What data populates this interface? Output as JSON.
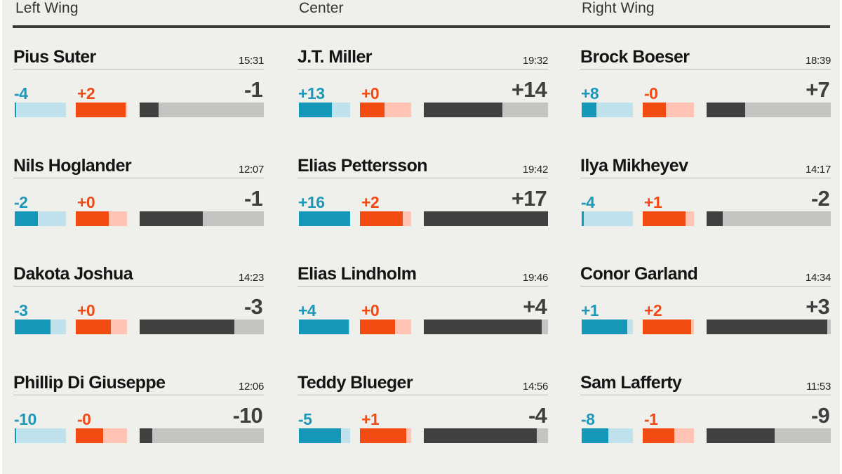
{
  "columns": [
    {
      "title": "Left Wing",
      "players": [
        {
          "name": "Pius Suter",
          "toi": "15:31",
          "blue": "-4",
          "red": "+2",
          "net": "-1",
          "blue_fill": 0.03,
          "red_fill": 0.97,
          "net_fill": 0.15
        },
        {
          "name": "Nils Hoglander",
          "toi": "12:07",
          "blue": "-2",
          "red": "+0",
          "net": "-1",
          "blue_fill": 0.45,
          "red_fill": 0.64,
          "net_fill": 0.51
        },
        {
          "name": "Dakota Joshua",
          "toi": "14:23",
          "blue": "-3",
          "red": "+0",
          "net": "-3",
          "blue_fill": 0.7,
          "red_fill": 0.68,
          "net_fill": 0.76
        },
        {
          "name": "Phillip Di Giuseppe",
          "toi": "12:06",
          "blue": "-10",
          "red": "-0",
          "net": "-10",
          "blue_fill": 0.02,
          "red_fill": 0.54,
          "net_fill": 0.1
        }
      ]
    },
    {
      "title": "Center",
      "players": [
        {
          "name": "J.T. Miller",
          "toi": "19:32",
          "blue": "+13",
          "red": "+0",
          "net": "+14",
          "blue_fill": 0.64,
          "red_fill": 0.48,
          "net_fill": 0.63
        },
        {
          "name": "Elias Pettersson",
          "toi": "19:42",
          "blue": "+16",
          "red": "+2",
          "net": "+17",
          "blue_fill": 1.0,
          "red_fill": 0.84,
          "net_fill": 1.0
        },
        {
          "name": "Elias Lindholm",
          "toi": "19:46",
          "blue": "+4",
          "red": "+0",
          "net": "+4",
          "blue_fill": 0.97,
          "red_fill": 0.68,
          "net_fill": 0.95
        },
        {
          "name": "Teddy Blueger",
          "toi": "14:56",
          "blue": "-5",
          "red": "+1",
          "net": "-4",
          "blue_fill": 0.82,
          "red_fill": 0.9,
          "net_fill": 0.91
        }
      ]
    },
    {
      "title": "Right Wing",
      "players": [
        {
          "name": "Brock Boeser",
          "toi": "18:39",
          "blue": "+8",
          "red": "-0",
          "net": "+7",
          "blue_fill": 0.29,
          "red_fill": 0.45,
          "net_fill": 0.31
        },
        {
          "name": "Ilya Mikheyev",
          "toi": "14:17",
          "blue": "-4",
          "red": "+1",
          "net": "-2",
          "blue_fill": 0.04,
          "red_fill": 0.84,
          "net_fill": 0.13
        },
        {
          "name": "Conor Garland",
          "toi": "14:34",
          "blue": "+1",
          "red": "+2",
          "net": "+3",
          "blue_fill": 0.89,
          "red_fill": 0.95,
          "net_fill": 0.97
        },
        {
          "name": "Sam Lafferty",
          "toi": "11:53",
          "blue": "-8",
          "red": "-1",
          "net": "-9",
          "blue_fill": 0.52,
          "red_fill": 0.62,
          "net_fill": 0.55
        }
      ]
    }
  ],
  "colors": {
    "blue": "#1597b8",
    "blue_light": "#bfe2ec",
    "red": "#f14b12",
    "red_light": "#ffc4b3",
    "net": "#404040",
    "net_light": "#c3c3c1"
  },
  "chart_data": {
    "type": "bar",
    "title": "",
    "categories": [
      "Left Wing",
      "Center",
      "Right Wing"
    ],
    "series": [
      {
        "position": "Left Wing",
        "player": "Pius Suter",
        "toi": "15:31",
        "blue": -4,
        "red": 2,
        "net": -1
      },
      {
        "position": "Left Wing",
        "player": "Nils Hoglander",
        "toi": "12:07",
        "blue": -2,
        "red": 0,
        "net": -1
      },
      {
        "position": "Left Wing",
        "player": "Dakota Joshua",
        "toi": "14:23",
        "blue": -3,
        "red": 0,
        "net": -3
      },
      {
        "position": "Left Wing",
        "player": "Phillip Di Giuseppe",
        "toi": "12:06",
        "blue": -10,
        "red": 0,
        "net": -10
      },
      {
        "position": "Center",
        "player": "J.T. Miller",
        "toi": "19:32",
        "blue": 13,
        "red": 0,
        "net": 14
      },
      {
        "position": "Center",
        "player": "Elias Pettersson",
        "toi": "19:42",
        "blue": 16,
        "red": 2,
        "net": 17
      },
      {
        "position": "Center",
        "player": "Elias Lindholm",
        "toi": "19:46",
        "blue": 4,
        "red": 0,
        "net": 4
      },
      {
        "position": "Center",
        "player": "Teddy Blueger",
        "toi": "14:56",
        "blue": -5,
        "red": 1,
        "net": -4
      },
      {
        "position": "Right Wing",
        "player": "Brock Boeser",
        "toi": "18:39",
        "blue": 8,
        "red": 0,
        "net": 7
      },
      {
        "position": "Right Wing",
        "player": "Ilya Mikheyev",
        "toi": "14:17",
        "blue": -4,
        "red": 1,
        "net": -2
      },
      {
        "position": "Right Wing",
        "player": "Conor Garland",
        "toi": "14:34",
        "blue": 1,
        "red": 2,
        "net": 3
      },
      {
        "position": "Right Wing",
        "player": "Sam Lafferty",
        "toi": "11:53",
        "blue": -8,
        "red": -1,
        "net": -9
      }
    ]
  }
}
